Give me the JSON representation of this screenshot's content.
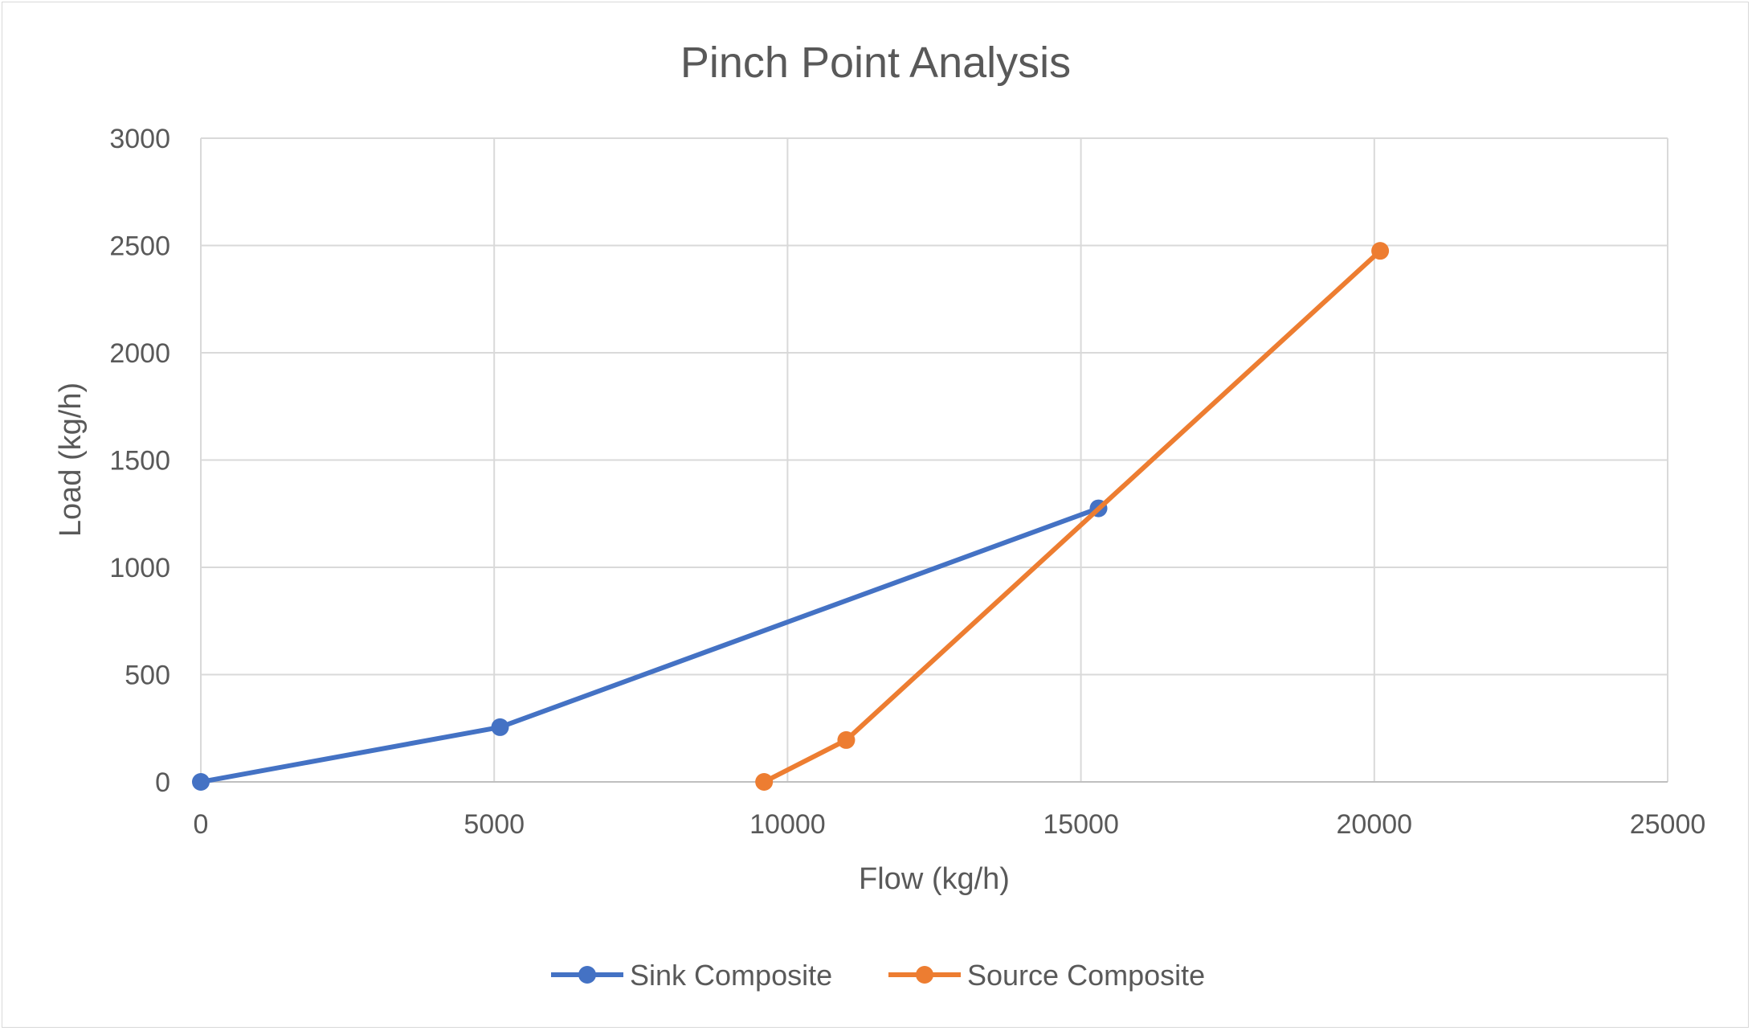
{
  "chart_data": {
    "type": "scatter",
    "title": "Pinch Point Analysis",
    "xlabel": "Flow (kg/h)",
    "ylabel": "Load (kg/h)",
    "xlim": [
      0,
      25000
    ],
    "ylim": [
      0,
      3000
    ],
    "x_ticks": [
      "0",
      "5000",
      "10000",
      "15000",
      "20000",
      "25000"
    ],
    "y_ticks": [
      "0",
      "500",
      "1000",
      "1500",
      "2000",
      "2500",
      "3000"
    ],
    "grid": true,
    "legend_position": "bottom",
    "series": [
      {
        "name": "Sink Composite",
        "color": "#4472C4",
        "points": [
          {
            "x": 0,
            "y": 0
          },
          {
            "x": 5100,
            "y": 255
          },
          {
            "x": 15300,
            "y": 1275
          }
        ]
      },
      {
        "name": "Source Composite",
        "color": "#ED7D31",
        "points": [
          {
            "x": 9600,
            "y": 0
          },
          {
            "x": 11000,
            "y": 195
          },
          {
            "x": 20100,
            "y": 2475
          }
        ]
      }
    ]
  }
}
